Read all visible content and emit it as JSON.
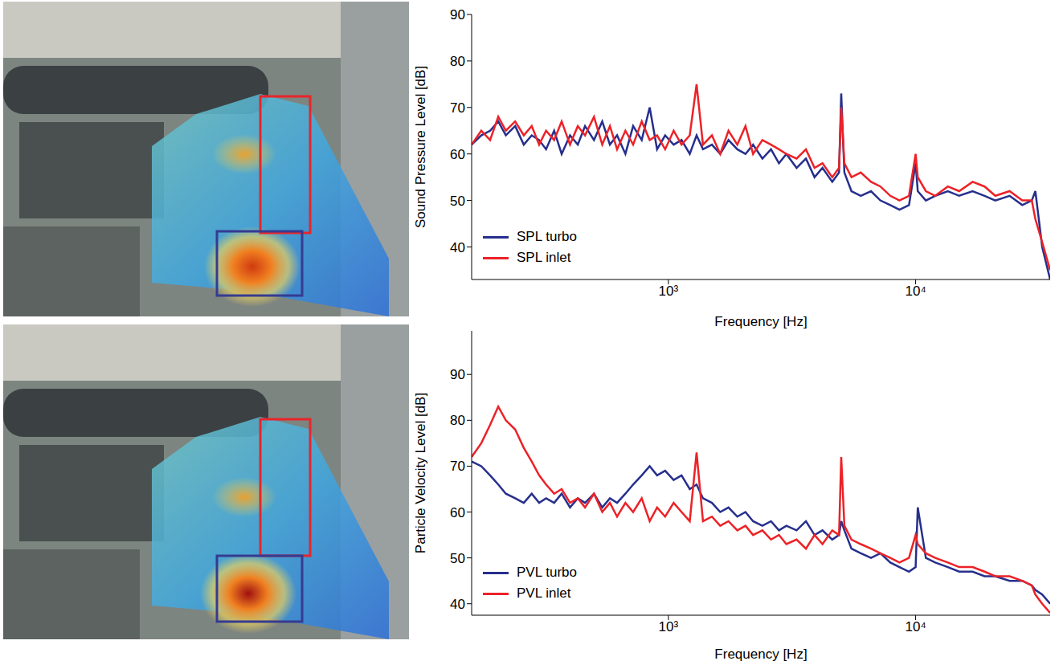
{
  "chart_data": [
    {
      "type": "line",
      "x_label": "Frequency [Hz]",
      "y_label": "Sound Pressure Level [dB]",
      "log": "x",
      "grid": false,
      "legend": "lower left",
      "xlim": [
        160,
        35000
      ],
      "ylim": [
        33,
        90
      ],
      "xticks": [
        {
          "value": 1000,
          "label": "10³"
        },
        {
          "value": 10000,
          "label": "10⁴"
        }
      ],
      "yticks": [
        40,
        50,
        60,
        70,
        80,
        90
      ],
      "x": [
        160,
        175,
        190,
        205,
        220,
        240,
        260,
        280,
        300,
        320,
        345,
        370,
        400,
        430,
        460,
        500,
        540,
        580,
        620,
        670,
        720,
        780,
        840,
        900,
        970,
        1050,
        1130,
        1220,
        1300,
        1380,
        1500,
        1620,
        1750,
        1900,
        2050,
        2200,
        2400,
        2600,
        2800,
        3000,
        3300,
        3600,
        3900,
        4200,
        4600,
        4900,
        5000,
        5150,
        5500,
        6000,
        6600,
        7200,
        7900,
        8600,
        9400,
        10000,
        10200,
        11000,
        12000,
        13500,
        15000,
        17000,
        19000,
        21000,
        24000,
        27000,
        29500,
        30500,
        32500,
        35000
      ],
      "series": [
        {
          "name": "SPL turbo",
          "color": "#262f8c",
          "values": [
            62,
            64,
            65,
            67,
            64,
            66,
            62,
            64,
            63,
            61,
            65,
            60,
            64,
            62,
            66,
            63,
            67,
            62,
            64,
            60,
            66,
            63,
            70,
            61,
            64,
            62,
            63,
            60,
            64,
            61,
            62,
            60,
            63,
            61,
            60,
            62,
            59,
            61,
            58,
            60,
            57,
            59,
            55,
            57,
            54,
            56,
            73,
            56,
            52,
            51,
            52,
            50,
            49,
            48,
            49,
            58,
            52,
            50,
            51,
            52,
            51,
            52,
            51,
            50,
            51,
            49,
            50,
            52,
            40,
            33
          ]
        },
        {
          "name": "SPL inlet",
          "color": "#ec2227",
          "values": [
            62,
            65,
            63,
            68,
            65,
            67,
            64,
            66,
            62,
            65,
            63,
            67,
            62,
            66,
            64,
            68,
            62,
            66,
            61,
            65,
            62,
            67,
            63,
            64,
            61,
            65,
            62,
            64,
            75,
            62,
            64,
            60,
            65,
            62,
            66,
            60,
            63,
            62,
            61,
            60,
            59,
            61,
            57,
            58,
            55,
            57,
            70,
            58,
            55,
            56,
            54,
            53,
            51,
            50,
            51,
            60,
            55,
            52,
            51,
            53,
            52,
            54,
            53,
            51,
            52,
            50,
            50,
            46,
            41,
            35
          ]
        }
      ]
    },
    {
      "type": "line",
      "x_label": "Frequency [Hz]",
      "y_label": "Particle Velocity Level [dB]",
      "log": "x",
      "grid": false,
      "legend": "lower left",
      "xlim": [
        160,
        35000
      ],
      "ylim": [
        37.5,
        99.5
      ],
      "xticks": [
        {
          "value": 1000,
          "label": "10³"
        },
        {
          "value": 10000,
          "label": "10⁴"
        }
      ],
      "yticks": [
        40,
        50,
        60,
        70,
        80,
        90
      ],
      "x": [
        160,
        175,
        190,
        205,
        220,
        240,
        260,
        280,
        300,
        320,
        345,
        370,
        400,
        430,
        460,
        500,
        540,
        580,
        620,
        670,
        720,
        780,
        840,
        900,
        970,
        1050,
        1130,
        1220,
        1300,
        1380,
        1500,
        1620,
        1750,
        1900,
        2050,
        2200,
        2400,
        2600,
        2800,
        3000,
        3300,
        3600,
        3900,
        4200,
        4600,
        4900,
        5000,
        5150,
        5500,
        6000,
        6600,
        7200,
        7900,
        8600,
        9400,
        10000,
        10200,
        11000,
        12000,
        13500,
        15000,
        17000,
        19000,
        21000,
        24000,
        27000,
        29500,
        30500,
        32500,
        35000
      ],
      "series": [
        {
          "name": "PVL turbo",
          "color": "#262f8c",
          "values": [
            71,
            70,
            68,
            66,
            64,
            63,
            62,
            64,
            62,
            63,
            62,
            64,
            61,
            63,
            62,
            64,
            61,
            63,
            62,
            64,
            66,
            68,
            70,
            68,
            69,
            67,
            68,
            65,
            66,
            63,
            62,
            60,
            61,
            59,
            60,
            58,
            57,
            58,
            56,
            57,
            56,
            58,
            55,
            56,
            54,
            55,
            58,
            56,
            52,
            51,
            50,
            51,
            49,
            48,
            47,
            48,
            61,
            50,
            49,
            48,
            47,
            47,
            46,
            46,
            45,
            45,
            44,
            43,
            42,
            40
          ]
        },
        {
          "name": "PVL inlet",
          "color": "#ec2227",
          "values": [
            72,
            75,
            79,
            83,
            80,
            78,
            74,
            71,
            68,
            66,
            64,
            65,
            62,
            63,
            61,
            64,
            60,
            62,
            59,
            62,
            60,
            63,
            58,
            61,
            59,
            62,
            60,
            58,
            73,
            58,
            59,
            57,
            58,
            56,
            57,
            55,
            56,
            54,
            55,
            53,
            54,
            52,
            55,
            53,
            56,
            55,
            72,
            57,
            54,
            53,
            52,
            51,
            50,
            49,
            50,
            55,
            53,
            51,
            50,
            49,
            48,
            48,
            47,
            46,
            46,
            45,
            44,
            42,
            40,
            38
          ]
        }
      ]
    }
  ]
}
